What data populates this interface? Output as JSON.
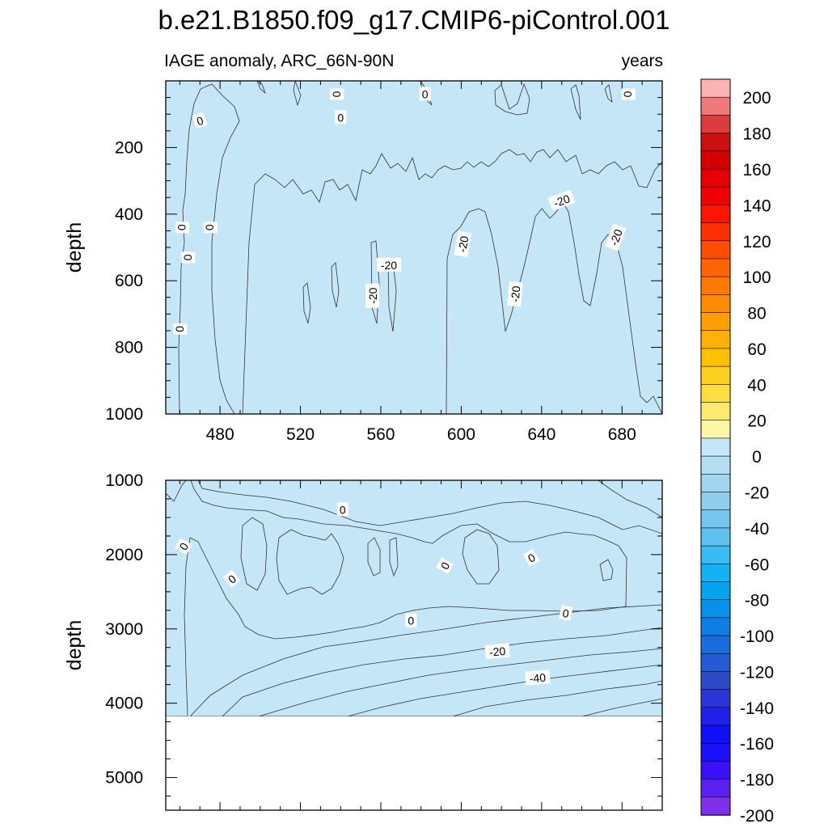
{
  "chart_data": {
    "title": "b.e21.B1850.f09_g17.CMIP6-piControl.001",
    "subtitle_left": "IAGE anomaly, ARC_66N-90N",
    "subtitle_right": "years",
    "panels": [
      {
        "type": "contour",
        "name": "upper",
        "xlabel": "",
        "ylabel": "depth",
        "xlim": [
          453,
          700
        ],
        "ylim": [
          1000,
          0
        ],
        "xticks": [
          480,
          520,
          560,
          600,
          640,
          680
        ],
        "yticks": [
          200,
          400,
          600,
          800,
          1000
        ],
        "contour_labels": [
          {
            "text": "0",
            "x": 470,
            "y": 120,
            "rot": -20
          },
          {
            "text": "0",
            "x": 538,
            "y": 40,
            "rot": 90
          },
          {
            "text": "0",
            "x": 540,
            "y": 110,
            "rot": 0
          },
          {
            "text": "0",
            "x": 582,
            "y": 40,
            "rot": 0
          },
          {
            "text": "0",
            "x": 683,
            "y": 40,
            "rot": 90
          },
          {
            "text": "0",
            "x": 461,
            "y": 440,
            "rot": 90
          },
          {
            "text": "0",
            "x": 475,
            "y": 440,
            "rot": 90
          },
          {
            "text": "0",
            "x": 464,
            "y": 530,
            "rot": 90
          },
          {
            "text": "0",
            "x": 460,
            "y": 745,
            "rot": 90
          },
          {
            "text": "-20",
            "x": 556,
            "y": 645,
            "rot": -90
          },
          {
            "text": "-20",
            "x": 564,
            "y": 553,
            "rot": 0
          },
          {
            "text": "-20",
            "x": 601,
            "y": 490,
            "rot": -80
          },
          {
            "text": "-20",
            "x": 627,
            "y": 640,
            "rot": -85
          },
          {
            "text": "-20",
            "x": 650,
            "y": 360,
            "rot": -20
          },
          {
            "text": "-20",
            "x": 677,
            "y": 470,
            "rot": -70
          }
        ]
      },
      {
        "type": "contour",
        "name": "lower",
        "xlabel": "",
        "ylabel": "depth",
        "xlim": [
          453,
          700
        ],
        "ylim": [
          5440,
          1000
        ],
        "yticks": [
          1000,
          2000,
          3000,
          4000,
          5000
        ],
        "data_bottom": 4120,
        "contour_labels": [
          {
            "text": "0",
            "x": 541,
            "y": 1395,
            "rot": 0
          },
          {
            "text": "0",
            "x": 462,
            "y": 1890,
            "rot": -60
          },
          {
            "text": "0",
            "x": 486,
            "y": 2330,
            "rot": -40
          },
          {
            "text": "0",
            "x": 575,
            "y": 2890,
            "rot": 0
          },
          {
            "text": "0",
            "x": 592,
            "y": 2150,
            "rot": -60
          },
          {
            "text": "0",
            "x": 635,
            "y": 2045,
            "rot": -30
          },
          {
            "text": "0",
            "x": 652,
            "y": 2790,
            "rot": 10
          },
          {
            "text": "-20",
            "x": 618,
            "y": 3305,
            "rot": -5
          },
          {
            "text": "-40",
            "x": 638,
            "y": 3660,
            "rot": -5
          }
        ]
      }
    ],
    "colorbar": {
      "levels": [
        -210,
        -200,
        -190,
        -180,
        -170,
        -160,
        -150,
        -140,
        -130,
        -120,
        -110,
        -100,
        -90,
        -80,
        -70,
        -60,
        -50,
        -40,
        -30,
        -20,
        -10,
        0,
        10,
        20,
        30,
        40,
        50,
        60,
        70,
        80,
        90,
        100,
        110,
        120,
        130,
        140,
        150,
        160,
        170,
        180,
        190,
        200,
        210
      ],
      "labels": [
        "200",
        "180",
        "160",
        "140",
        "120",
        "100",
        "80",
        "60",
        "40",
        "20",
        "0",
        "-20",
        "-40",
        "-60",
        "-80",
        "-100",
        "-120",
        "-140",
        "-160",
        "-180",
        "-200"
      ],
      "colors": [
        "#ffb3b3",
        "#f07878",
        "#dd3c3c",
        "#cc1010",
        "#d40000",
        "#e40000",
        "#f00000",
        "#ff1400",
        "#ff3000",
        "#ff4d00",
        "#ff6400",
        "#ff7800",
        "#ff8c00",
        "#ff9f00",
        "#ffb000",
        "#ffc000",
        "#ffd020",
        "#ffde40",
        "#ffea70",
        "#fff6a8",
        "#c5e6f6",
        "#b4def2",
        "#a2d6ef",
        "#8fcded",
        "#76c7ef",
        "#5ec1f2",
        "#39bbf5",
        "#13b2f5",
        "#05a3f0",
        "#0891ea",
        "#0f7ee3",
        "#1a6cdc",
        "#245ad3",
        "#2c4ac8",
        "#2c34d8",
        "#2020ea",
        "#1010f8",
        "#1a10ff",
        "#3a10f8",
        "#5a20f0",
        "#8030e8"
      ]
    }
  }
}
